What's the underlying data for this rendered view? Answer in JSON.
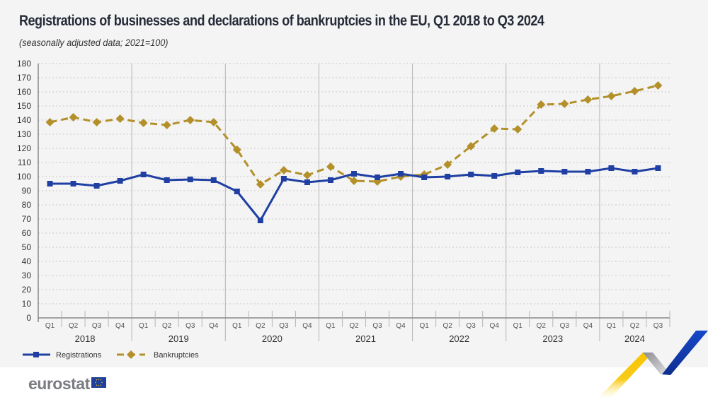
{
  "header": {
    "title": "Registrations of businesses and declarations of bankruptcies in the EU, Q1 2018 to Q3 2024",
    "subtitle": "(seasonally adjusted data; 2021=100)"
  },
  "footer": {
    "logo_text": "eurostat",
    "flag_icon": "eu-flag-icon"
  },
  "colors": {
    "registrations": "#1f3fa3",
    "bankruptcies": "#b3902a",
    "panel_bg": "#f4f4f4"
  },
  "chart_data": {
    "type": "line",
    "title": "Registrations of businesses and declarations of bankruptcies in the EU, Q1 2018 to Q3 2024",
    "subtitle": "(seasonally adjusted data; 2021=100)",
    "xlabel": "",
    "ylabel": "",
    "ylim": [
      0,
      180
    ],
    "yticks": [
      0,
      10,
      20,
      30,
      40,
      50,
      60,
      70,
      80,
      90,
      100,
      110,
      120,
      130,
      140,
      150,
      160,
      170,
      180
    ],
    "grid": true,
    "legend_position": "bottom-left",
    "years": [
      "2018",
      "2019",
      "2020",
      "2021",
      "2022",
      "2023",
      "2024"
    ],
    "quarters_per_year": [
      4,
      4,
      4,
      4,
      4,
      4,
      3
    ],
    "categories": [
      "Q1",
      "Q2",
      "Q3",
      "Q4",
      "Q1",
      "Q2",
      "Q3",
      "Q4",
      "Q1",
      "Q2",
      "Q3",
      "Q4",
      "Q1",
      "Q2",
      "Q3",
      "Q4",
      "Q1",
      "Q2",
      "Q3",
      "Q4",
      "Q1",
      "Q2",
      "Q3",
      "Q4",
      "Q1",
      "Q2",
      "Q3"
    ],
    "series": [
      {
        "name": "Registrations",
        "style": "solid",
        "marker": "square",
        "values": [
          95,
          95,
          93.5,
          97,
          101.5,
          97.5,
          98,
          97.5,
          89.5,
          69,
          98.5,
          96,
          97.5,
          102,
          99.5,
          102,
          99.5,
          100,
          101.5,
          100.5,
          103,
          104,
          103.5,
          103.5,
          106,
          103.5,
          106
        ]
      },
      {
        "name": "Bankruptcies",
        "style": "dashed",
        "marker": "diamond",
        "values": [
          138.5,
          142,
          138.5,
          141,
          138,
          136.5,
          140,
          138.5,
          119,
          94.5,
          104.5,
          101,
          107,
          97,
          96.5,
          100,
          101.5,
          108.5,
          121.5,
          134,
          133.5,
          151,
          151.5,
          154.5,
          157,
          160.5,
          164.5
        ]
      }
    ]
  }
}
